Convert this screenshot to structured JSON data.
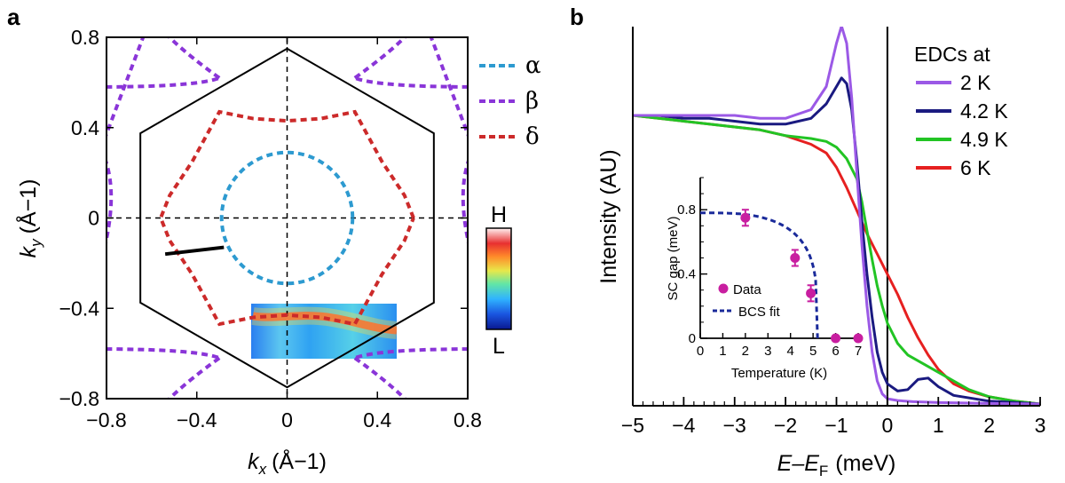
{
  "panel_a": {
    "label": "a",
    "chart_data": {
      "type": "scatter",
      "xlabel_main": "k",
      "xlabel_sub": "x",
      "xlabel_unit": "(Å−1)",
      "ylabel_main": "k",
      "ylabel_sub": "y",
      "ylabel_unit": "(Å−1)",
      "xlim": [
        -0.8,
        0.8
      ],
      "ylim": [
        -0.8,
        0.8
      ],
      "xticks": [
        -0.8,
        -0.4,
        0,
        0.4,
        0.8
      ],
      "yticks": [
        -0.8,
        -0.4,
        0,
        0.4,
        0.8
      ],
      "xtick_labels": [
        "−0.8",
        "−0.4",
        "0",
        "0.4",
        "0.8"
      ],
      "ytick_labels": [
        "−0.8",
        "−0.4",
        "0",
        "0.4",
        "0.8"
      ],
      "legend": [
        {
          "label": "α",
          "color": "#2d9ad0"
        },
        {
          "label": "β",
          "color": "#8a35d8"
        },
        {
          "label": "δ",
          "color": "#cc2a2a"
        }
      ],
      "colorbar": {
        "high": "H",
        "low": "L"
      },
      "hexagon_vertices": [
        [
          0,
          0.75
        ],
        [
          0.65,
          0.375
        ],
        [
          0.65,
          -0.375
        ],
        [
          0,
          -0.75
        ],
        [
          -0.65,
          -0.375
        ],
        [
          -0.65,
          0.375
        ]
      ],
      "alpha_pocket": {
        "cx": 0,
        "cy": 0,
        "r": 0.29
      },
      "delta_curve": [
        [
          0.56,
          0
        ],
        [
          0.52,
          0.1
        ],
        [
          0.42,
          0.25
        ],
        [
          0.3,
          0.47
        ],
        [
          0.15,
          0.44
        ],
        [
          0,
          0.43
        ],
        [
          -0.15,
          0.44
        ],
        [
          -0.3,
          0.47
        ],
        [
          -0.42,
          0.25
        ],
        [
          -0.52,
          0.1
        ],
        [
          -0.56,
          0
        ],
        [
          -0.52,
          -0.1
        ],
        [
          -0.42,
          -0.25
        ],
        [
          -0.3,
          -0.47
        ],
        [
          -0.15,
          -0.44
        ],
        [
          0,
          -0.43
        ],
        [
          0.15,
          -0.44
        ],
        [
          0.3,
          -0.47
        ],
        [
          0.42,
          -0.25
        ],
        [
          0.52,
          -0.1
        ],
        [
          0.56,
          0
        ]
      ],
      "cut_line": [
        [
          -0.54,
          -0.16
        ],
        [
          -0.28,
          -0.13
        ]
      ]
    }
  },
  "panel_b": {
    "label": "b",
    "chart_data": {
      "type": "line",
      "xlabel_main": "E–E",
      "xlabel_sub": "F",
      "xlabel_unit": "(meV)",
      "ylabel": "Intensity (AU)",
      "xlim": [
        -5,
        3
      ],
      "xticks": [
        -5,
        -4,
        -3,
        -2,
        -1,
        0,
        1,
        2,
        3
      ],
      "xtick_labels": [
        "−5",
        "−4",
        "−3",
        "−2",
        "−1",
        "0",
        "1",
        "2",
        "3"
      ],
      "legend_title": "EDCs at",
      "series": [
        {
          "name": "2 K",
          "color": "#9b59e6",
          "x": [
            -5,
            -4.5,
            -4,
            -3.5,
            -3,
            -2.5,
            -2,
            -1.5,
            -1.2,
            -1.0,
            -0.9,
            -0.8,
            -0.7,
            -0.6,
            -0.5,
            -0.4,
            -0.3,
            -0.2,
            -0.1,
            0,
            0.2,
            0.5,
            1,
            2,
            3
          ],
          "y": [
            1.0,
            1.0,
            1.0,
            1.0,
            1.0,
            0.99,
            0.99,
            1.02,
            1.1,
            1.25,
            1.31,
            1.25,
            1.06,
            0.8,
            0.55,
            0.34,
            0.18,
            0.08,
            0.035,
            0.018,
            0.012,
            0.008,
            0.005,
            0.002,
            0.0
          ]
        },
        {
          "name": "4.2 K",
          "color": "#1a1a80",
          "x": [
            -5,
            -4.5,
            -4,
            -3.5,
            -3,
            -2.5,
            -2,
            -1.5,
            -1.2,
            -1.0,
            -0.9,
            -0.8,
            -0.7,
            -0.6,
            -0.5,
            -0.4,
            -0.3,
            -0.2,
            -0.1,
            0,
            0.2,
            0.4,
            0.6,
            0.8,
            1.0,
            1.3,
            2,
            3
          ],
          "y": [
            1.0,
            1.0,
            0.99,
            0.99,
            0.98,
            0.97,
            0.97,
            0.99,
            1.04,
            1.1,
            1.13,
            1.11,
            1.02,
            0.84,
            0.63,
            0.45,
            0.3,
            0.18,
            0.11,
            0.07,
            0.045,
            0.05,
            0.085,
            0.09,
            0.06,
            0.03,
            0.01,
            0.0
          ]
        },
        {
          "name": "4.9 K",
          "color": "#22c424",
          "x": [
            -5,
            -4,
            -3,
            -2.5,
            -2,
            -1.5,
            -1.2,
            -1.0,
            -0.8,
            -0.6,
            -0.5,
            -0.4,
            -0.3,
            -0.2,
            -0.1,
            0,
            0.2,
            0.4,
            0.6,
            0.8,
            1.0,
            1.3,
            1.6,
            2,
            2.5,
            3
          ],
          "y": [
            1.0,
            0.98,
            0.96,
            0.95,
            0.93,
            0.92,
            0.91,
            0.89,
            0.85,
            0.78,
            0.7,
            0.6,
            0.5,
            0.41,
            0.34,
            0.28,
            0.21,
            0.17,
            0.15,
            0.13,
            0.11,
            0.08,
            0.05,
            0.025,
            0.01,
            0.0
          ]
        },
        {
          "name": "6 K",
          "color": "#e62020",
          "x": [
            -5,
            -4,
            -3,
            -2.5,
            -2,
            -1.5,
            -1.2,
            -1.0,
            -0.8,
            -0.6,
            -0.4,
            -0.2,
            0,
            0.2,
            0.4,
            0.6,
            0.8,
            1.0,
            1.3,
            1.6,
            2,
            2.5,
            3
          ],
          "y": [
            1.0,
            0.98,
            0.96,
            0.95,
            0.93,
            0.9,
            0.87,
            0.82,
            0.75,
            0.67,
            0.59,
            0.52,
            0.45,
            0.38,
            0.3,
            0.23,
            0.17,
            0.12,
            0.07,
            0.045,
            0.025,
            0.01,
            0.0
          ]
        }
      ]
    },
    "inset": {
      "chart_data": {
        "type": "scatter",
        "xlabel": "Temperature (K)",
        "ylabel": "SC gap (meV)",
        "xlim": [
          0,
          7
        ],
        "ylim": [
          0,
          1.0
        ],
        "xticks": [
          0,
          1,
          2,
          3,
          4,
          5,
          6,
          7
        ],
        "xtick_labels": [
          "0",
          "1",
          "2",
          "3",
          "4",
          "5",
          "6",
          "7"
        ],
        "yticks": [
          0,
          0.4,
          0.8
        ],
        "ytick_labels": [
          "0",
          "0.4",
          "0.8"
        ],
        "points": [
          {
            "x": 2,
            "y": 0.75,
            "err": 0.05
          },
          {
            "x": 4.2,
            "y": 0.5,
            "err": 0.05
          },
          {
            "x": 4.9,
            "y": 0.28,
            "err": 0.05
          },
          {
            "x": 6,
            "y": 0,
            "err": 0
          },
          {
            "x": 7,
            "y": 0,
            "err": 0
          }
        ],
        "bcs_fit": {
          "delta0": 0.78,
          "tc": 5.2
        },
        "legend": [
          {
            "label": "Data",
            "color": "#c81ea0"
          },
          {
            "label": "BCS fit",
            "color": "#1a2a9a"
          }
        ]
      }
    }
  }
}
